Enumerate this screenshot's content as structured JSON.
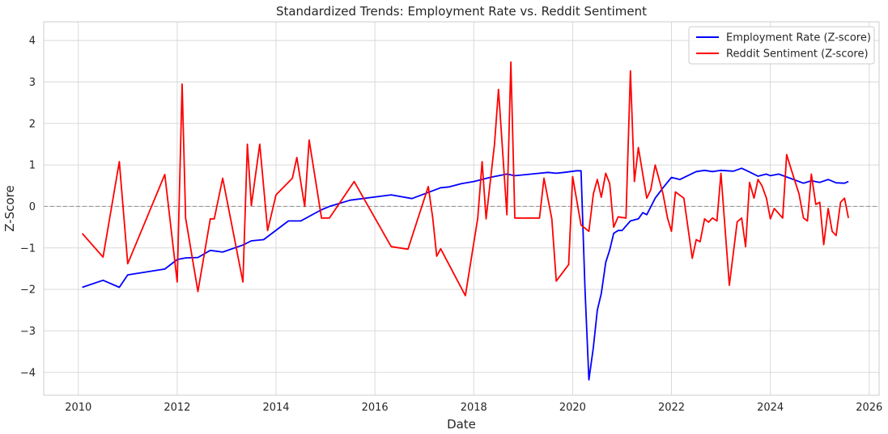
{
  "chart_data": {
    "type": "line",
    "title": "Standardized Trends: Employment Rate vs. Reddit Sentiment",
    "xlabel": "Date",
    "ylabel": "Z-Score",
    "xlim": [
      2009.3,
      2026.2
    ],
    "ylim": [
      -4.55,
      4.45
    ],
    "xticks": [
      2010,
      2012,
      2014,
      2016,
      2018,
      2020,
      2022,
      2024,
      2026
    ],
    "yticks": [
      -4,
      -3,
      -2,
      -1,
      0,
      1,
      2,
      3,
      4
    ],
    "grid": true,
    "legend_position": "top-right",
    "reference_line": {
      "y": 0,
      "style": "dashed",
      "color": "#999999"
    },
    "series": [
      {
        "name": "Employment Rate (Z-score)",
        "color": "#0000ff",
        "points": [
          [
            2010.08,
            -1.95
          ],
          [
            2010.5,
            -1.78
          ],
          [
            2010.83,
            -1.95
          ],
          [
            2011.0,
            -1.65
          ],
          [
            2011.75,
            -1.51
          ],
          [
            2012.0,
            -1.28
          ],
          [
            2012.17,
            -1.24
          ],
          [
            2012.42,
            -1.23
          ],
          [
            2012.67,
            -1.06
          ],
          [
            2012.92,
            -1.1
          ],
          [
            2013.33,
            -0.93
          ],
          [
            2013.5,
            -0.83
          ],
          [
            2013.75,
            -0.8
          ],
          [
            2014.25,
            -0.35
          ],
          [
            2014.5,
            -0.35
          ],
          [
            2014.92,
            -0.08
          ],
          [
            2015.08,
            0.0
          ],
          [
            2015.5,
            0.15
          ],
          [
            2016.33,
            0.28
          ],
          [
            2016.75,
            0.19
          ],
          [
            2017.33,
            0.45
          ],
          [
            2017.5,
            0.47
          ],
          [
            2017.75,
            0.55
          ],
          [
            2018.0,
            0.6
          ],
          [
            2018.33,
            0.7
          ],
          [
            2018.67,
            0.78
          ],
          [
            2018.83,
            0.74
          ],
          [
            2019.0,
            0.76
          ],
          [
            2019.33,
            0.8
          ],
          [
            2019.5,
            0.82
          ],
          [
            2019.67,
            0.8
          ],
          [
            2019.83,
            0.82
          ],
          [
            2020.08,
            0.86
          ],
          [
            2020.17,
            0.86
          ],
          [
            2020.25,
            -2.0
          ],
          [
            2020.33,
            -4.18
          ],
          [
            2020.42,
            -3.4
          ],
          [
            2020.5,
            -2.5
          ],
          [
            2020.58,
            -2.1
          ],
          [
            2020.67,
            -1.35
          ],
          [
            2020.75,
            -1.05
          ],
          [
            2020.83,
            -0.65
          ],
          [
            2020.92,
            -0.58
          ],
          [
            2021.0,
            -0.58
          ],
          [
            2021.17,
            -0.35
          ],
          [
            2021.33,
            -0.3
          ],
          [
            2021.42,
            -0.15
          ],
          [
            2021.5,
            -0.2
          ],
          [
            2021.67,
            0.2
          ],
          [
            2021.83,
            0.45
          ],
          [
            2022.0,
            0.7
          ],
          [
            2022.17,
            0.65
          ],
          [
            2022.5,
            0.84
          ],
          [
            2022.67,
            0.87
          ],
          [
            2022.83,
            0.84
          ],
          [
            2023.0,
            0.87
          ],
          [
            2023.25,
            0.85
          ],
          [
            2023.42,
            0.92
          ],
          [
            2023.58,
            0.83
          ],
          [
            2023.75,
            0.73
          ],
          [
            2023.92,
            0.78
          ],
          [
            2024.0,
            0.74
          ],
          [
            2024.17,
            0.78
          ],
          [
            2024.42,
            0.67
          ],
          [
            2024.67,
            0.56
          ],
          [
            2024.83,
            0.62
          ],
          [
            2025.0,
            0.58
          ],
          [
            2025.17,
            0.65
          ],
          [
            2025.33,
            0.57
          ],
          [
            2025.5,
            0.56
          ],
          [
            2025.58,
            0.6
          ]
        ]
      },
      {
        "name": "Reddit Sentiment (Z-score)",
        "color": "#ff0000",
        "points": [
          [
            2010.08,
            -0.65
          ],
          [
            2010.5,
            -1.22
          ],
          [
            2010.83,
            1.08
          ],
          [
            2011.0,
            -1.38
          ],
          [
            2011.75,
            0.77
          ],
          [
            2012.0,
            -1.82
          ],
          [
            2012.1,
            2.95
          ],
          [
            2012.17,
            -0.28
          ],
          [
            2012.42,
            -2.05
          ],
          [
            2012.67,
            -0.3
          ],
          [
            2012.75,
            -0.3
          ],
          [
            2012.92,
            0.68
          ],
          [
            2013.33,
            -1.82
          ],
          [
            2013.42,
            1.5
          ],
          [
            2013.5,
            0.02
          ],
          [
            2013.67,
            1.5
          ],
          [
            2013.83,
            -0.58
          ],
          [
            2014.0,
            0.28
          ],
          [
            2014.33,
            0.68
          ],
          [
            2014.42,
            1.18
          ],
          [
            2014.58,
            0.0
          ],
          [
            2014.67,
            1.6
          ],
          [
            2014.92,
            -0.28
          ],
          [
            2015.08,
            -0.28
          ],
          [
            2015.58,
            0.6
          ],
          [
            2016.33,
            -0.97
          ],
          [
            2016.67,
            -1.03
          ],
          [
            2017.08,
            0.48
          ],
          [
            2017.17,
            -0.28
          ],
          [
            2017.25,
            -1.2
          ],
          [
            2017.33,
            -1.02
          ],
          [
            2017.83,
            -2.15
          ],
          [
            2018.08,
            -0.28
          ],
          [
            2018.17,
            1.08
          ],
          [
            2018.25,
            -0.3
          ],
          [
            2018.42,
            1.5
          ],
          [
            2018.5,
            2.82
          ],
          [
            2018.67,
            -0.2
          ],
          [
            2018.75,
            3.48
          ],
          [
            2018.83,
            -0.28
          ],
          [
            2019.08,
            -0.28
          ],
          [
            2019.33,
            -0.28
          ],
          [
            2019.42,
            0.68
          ],
          [
            2019.58,
            -0.3
          ],
          [
            2019.67,
            -1.8
          ],
          [
            2019.92,
            -1.4
          ],
          [
            2020.0,
            0.72
          ],
          [
            2020.17,
            -0.45
          ],
          [
            2020.33,
            -0.6
          ],
          [
            2020.42,
            0.3
          ],
          [
            2020.5,
            0.65
          ],
          [
            2020.58,
            0.22
          ],
          [
            2020.67,
            0.8
          ],
          [
            2020.75,
            0.55
          ],
          [
            2020.83,
            -0.5
          ],
          [
            2020.92,
            -0.25
          ],
          [
            2021.08,
            -0.28
          ],
          [
            2021.17,
            3.27
          ],
          [
            2021.25,
            0.6
          ],
          [
            2021.33,
            1.42
          ],
          [
            2021.5,
            0.2
          ],
          [
            2021.58,
            0.4
          ],
          [
            2021.67,
            1.0
          ],
          [
            2021.83,
            0.3
          ],
          [
            2021.92,
            -0.28
          ],
          [
            2022.0,
            -0.6
          ],
          [
            2022.08,
            0.35
          ],
          [
            2022.25,
            0.2
          ],
          [
            2022.42,
            -1.25
          ],
          [
            2022.5,
            -0.8
          ],
          [
            2022.58,
            -0.85
          ],
          [
            2022.67,
            -0.3
          ],
          [
            2022.75,
            -0.38
          ],
          [
            2022.83,
            -0.28
          ],
          [
            2022.92,
            -0.35
          ],
          [
            2023.0,
            0.8
          ],
          [
            2023.17,
            -1.9
          ],
          [
            2023.33,
            -0.37
          ],
          [
            2023.42,
            -0.28
          ],
          [
            2023.5,
            -0.97
          ],
          [
            2023.58,
            0.58
          ],
          [
            2023.67,
            0.2
          ],
          [
            2023.75,
            0.65
          ],
          [
            2023.83,
            0.5
          ],
          [
            2023.92,
            0.2
          ],
          [
            2024.0,
            -0.3
          ],
          [
            2024.08,
            -0.05
          ],
          [
            2024.25,
            -0.28
          ],
          [
            2024.33,
            1.25
          ],
          [
            2024.42,
            0.9
          ],
          [
            2024.58,
            0.3
          ],
          [
            2024.67,
            -0.28
          ],
          [
            2024.75,
            -0.35
          ],
          [
            2024.83,
            0.78
          ],
          [
            2024.92,
            0.05
          ],
          [
            2025.0,
            0.1
          ],
          [
            2025.08,
            -0.92
          ],
          [
            2025.17,
            -0.05
          ],
          [
            2025.25,
            -0.6
          ],
          [
            2025.33,
            -0.7
          ],
          [
            2025.42,
            0.1
          ],
          [
            2025.5,
            0.2
          ],
          [
            2025.58,
            -0.28
          ]
        ]
      }
    ]
  }
}
